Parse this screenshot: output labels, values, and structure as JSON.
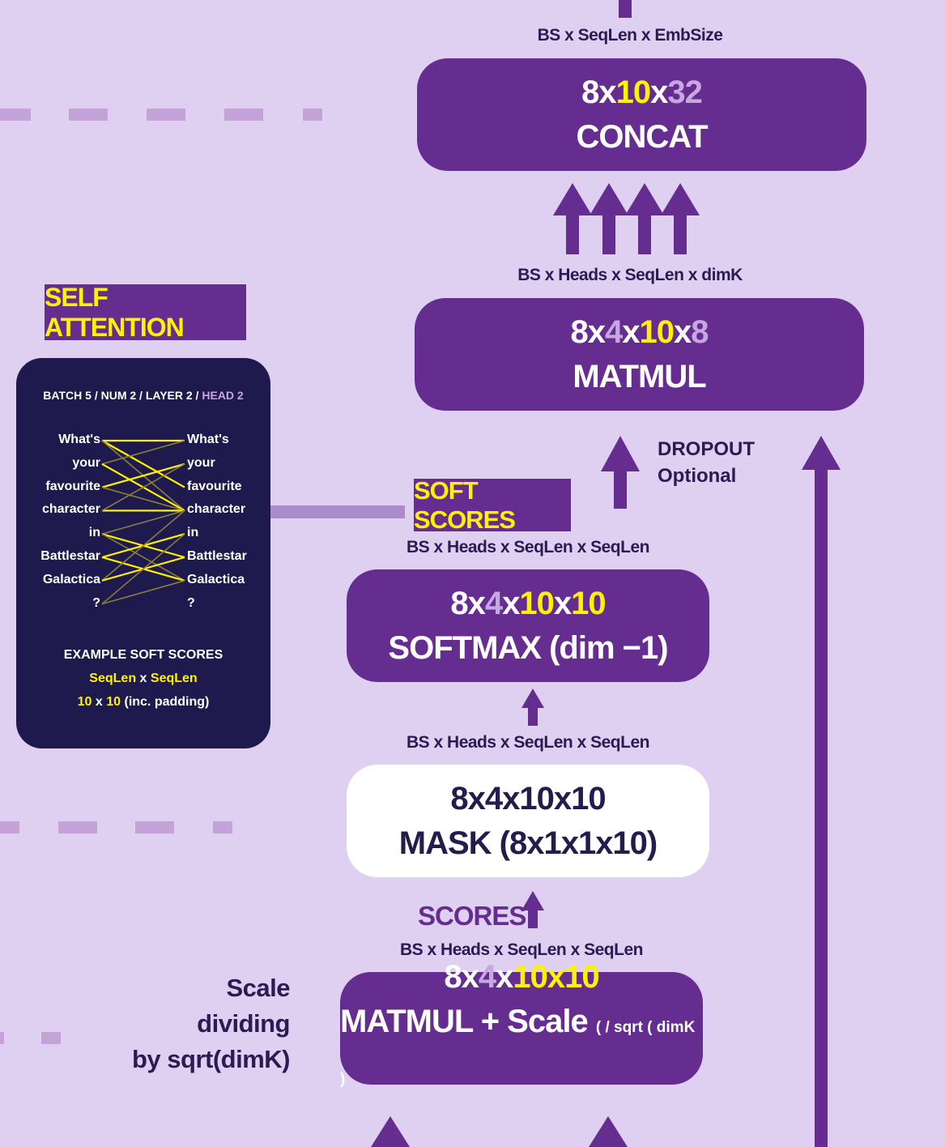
{
  "concat": {
    "shape_label": "BS x SeqLen x EmbSize",
    "dims": [
      "8",
      "x",
      "10",
      "x",
      "32"
    ],
    "op": "CONCAT"
  },
  "matmul": {
    "shape_label": "BS x Heads x SeqLen x dimK",
    "dims": [
      "8",
      "x",
      "4",
      "x",
      "10",
      "x",
      "8"
    ],
    "op": "MATMUL"
  },
  "dropout": {
    "line1": "DROPOUT",
    "line2": "Optional"
  },
  "soft_scores": {
    "tag": "SOFT SCORES",
    "shape_label": "BS x Heads x SeqLen x SeqLen"
  },
  "softmax": {
    "dims": [
      "8",
      "x",
      "4",
      "x",
      "10",
      "x",
      "10"
    ],
    "op": "SOFTMAX (dim −1)"
  },
  "mask": {
    "shape_label": "BS x Heads x SeqLen x SeqLen",
    "dims": "8x4x10x10",
    "op": "MASK (8x1x1x10)"
  },
  "scores": {
    "tag": "SCORES",
    "shape_label": "BS x Heads x SeqLen x SeqLen"
  },
  "matmul_scale": {
    "dims": [
      "8",
      "x",
      "4",
      "x",
      "10",
      "x",
      "10"
    ],
    "op": "MATMUL + Scale",
    "op_suffix": "( / sqrt ( dimK )"
  },
  "scale_note": [
    "Scale",
    "dividing",
    "by sqrt(dimK)"
  ],
  "self_attention": {
    "title": "SELF ATTENTION",
    "header": "BATCH 5 / NUM 2 / LAYER 2 / ",
    "header_highlight": "HEAD 2",
    "tokens": [
      "What's",
      "your",
      "favourite",
      "character",
      "in",
      "Battlestar",
      "Galactica",
      "?"
    ],
    "example_title": "EXAMPLE SOFT SCORES",
    "example_seq_a": "SeqLen",
    "example_x": "x",
    "example_seq_b": "SeqLen",
    "example_n_a": "10",
    "example_x2": "x",
    "example_n_b": "10",
    "example_note": "(inc. padding)",
    "links": [
      {
        "from": 0,
        "to": 0,
        "strong": true
      },
      {
        "from": 0,
        "to": 2,
        "strong": true
      },
      {
        "from": 0,
        "to": 3,
        "strong": false
      },
      {
        "from": 1,
        "to": 0,
        "strong": false
      },
      {
        "from": 1,
        "to": 3,
        "strong": true
      },
      {
        "from": 2,
        "to": 1,
        "strong": true
      },
      {
        "from": 2,
        "to": 3,
        "strong": false
      },
      {
        "from": 3,
        "to": 3,
        "strong": true
      },
      {
        "from": 3,
        "to": 1,
        "strong": false
      },
      {
        "from": 4,
        "to": 3,
        "strong": false
      },
      {
        "from": 4,
        "to": 5,
        "strong": true
      },
      {
        "from": 4,
        "to": 6,
        "strong": false
      },
      {
        "from": 5,
        "to": 4,
        "strong": true
      },
      {
        "from": 5,
        "to": 6,
        "strong": true
      },
      {
        "from": 6,
        "to": 3,
        "strong": false
      },
      {
        "from": 6,
        "to": 5,
        "strong": true
      },
      {
        "from": 7,
        "to": 6,
        "strong": false
      },
      {
        "from": 7,
        "to": 4,
        "strong": false
      }
    ]
  },
  "colors": {
    "background": "#dfcff0",
    "box": "#662d91",
    "panel": "#1f1a4d",
    "highlight": "#fff200",
    "muted": "#c6a6e3"
  }
}
